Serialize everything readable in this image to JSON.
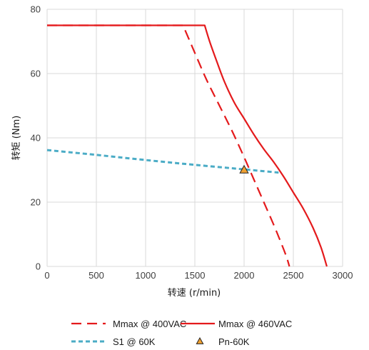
{
  "chart_data": {
    "type": "line",
    "xlabel": "转速 (r/min)",
    "ylabel": "转矩 (Nm)",
    "xlim": [
      0,
      3000
    ],
    "ylim": [
      0,
      80
    ],
    "x_ticks": [
      0,
      500,
      1000,
      1500,
      2000,
      2500,
      3000
    ],
    "y_ticks": [
      0,
      20,
      40,
      60,
      80
    ],
    "grid": "vertical and horizontal",
    "legend_position": "bottom",
    "series": [
      {
        "name": "Mmax @ 400VAC",
        "style": "dashed",
        "color": "#e41a1c",
        "points": [
          [
            0,
            75
          ],
          [
            1380,
            75
          ],
          [
            1450,
            70
          ],
          [
            1520,
            65
          ],
          [
            1620,
            58
          ],
          [
            1750,
            50
          ],
          [
            1880,
            42
          ],
          [
            2000,
            34
          ],
          [
            2100,
            27
          ],
          [
            2200,
            20
          ],
          [
            2300,
            13
          ],
          [
            2380,
            7
          ],
          [
            2430,
            3
          ],
          [
            2460,
            0
          ]
        ]
      },
      {
        "name": "Mmax @ 460VAC",
        "style": "solid",
        "color": "#e41a1c",
        "points": [
          [
            0,
            75
          ],
          [
            1600,
            75
          ],
          [
            1650,
            70
          ],
          [
            1720,
            64
          ],
          [
            1800,
            57.5
          ],
          [
            1900,
            51
          ],
          [
            2000,
            46
          ],
          [
            2100,
            41
          ],
          [
            2200,
            36.5
          ],
          [
            2300,
            32.5
          ],
          [
            2400,
            28
          ],
          [
            2500,
            23
          ],
          [
            2600,
            18
          ],
          [
            2700,
            12
          ],
          [
            2780,
            6
          ],
          [
            2840,
            0
          ]
        ]
      },
      {
        "name": "S1 @ 60K",
        "style": "dotted",
        "color": "#4bacc6",
        "points": [
          [
            0,
            36.2
          ],
          [
            500,
            34.7
          ],
          [
            1000,
            33.1
          ],
          [
            1500,
            31.6
          ],
          [
            2000,
            30.2
          ],
          [
            2350,
            29.2
          ]
        ]
      },
      {
        "name": "Pn-60K",
        "style": "marker",
        "marker": "triangle",
        "color": "#f0a030",
        "points": [
          [
            2000,
            30
          ]
        ]
      }
    ]
  }
}
